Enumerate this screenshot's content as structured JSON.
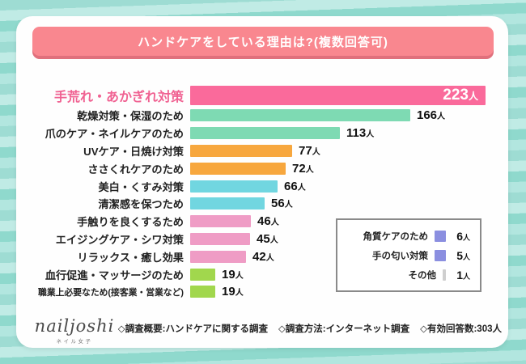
{
  "title": "ハンドケアをしている理由は?(複数回答可)",
  "colors": {
    "banner_pink": "#f9878f",
    "banner_shadow": "#e0707c",
    "highlight_label_pink": "#f06292",
    "background_teal_stripes": [
      "#9edcd3",
      "#c0ebe5",
      "#8fd9cd",
      "#b2e6df"
    ],
    "card_white": "#fefefe"
  },
  "chart_data": {
    "type": "bar",
    "orientation": "horizontal",
    "title": "ハンドケアをしている理由は?(複数回答可)",
    "unit": "人",
    "xlim": [
      0,
      223
    ],
    "categories": [
      "手荒れ・あかぎれ対策",
      "乾燥対策・保湿のため",
      "爪のケア・ネイルケアのため",
      "UVケア・日焼け対策",
      "ささくれケアのため",
      "美白・くすみ対策",
      "清潔感を保つため",
      "手触りを良くするため",
      "エイジングケア・シワ対策",
      "リラックス・癒し効果",
      "血行促進・マッサージのため",
      "職業上必要なため(接客業・営業など)"
    ],
    "values": [
      223,
      166,
      113,
      77,
      72,
      66,
      56,
      46,
      45,
      42,
      19,
      19
    ],
    "bar_colors": [
      "#fa6a9b",
      "#7edab3",
      "#7edab3",
      "#f7a73e",
      "#f7a73e",
      "#71d6e0",
      "#71d6e0",
      "#ef9cc5",
      "#ef9cc5",
      "#ef9cc5",
      "#a1d74d",
      "#a1d74d"
    ],
    "secondary_items": [
      {
        "label": "角質ケアのため",
        "value": 6,
        "color": "#8b8fe0"
      },
      {
        "label": "手の匂い対策",
        "value": 5,
        "color": "#8b8fe0"
      },
      {
        "label": "その他",
        "value": 1,
        "color": "#cfcfcf"
      }
    ]
  },
  "logo": {
    "name": "nailjoshi",
    "subtitle": "ネイル女子"
  },
  "footer": {
    "items": [
      "◇調査概要:ハンドケアに関する調査",
      "◇調査方法:インターネット調査",
      "◇有効回答数:303人"
    ]
  }
}
